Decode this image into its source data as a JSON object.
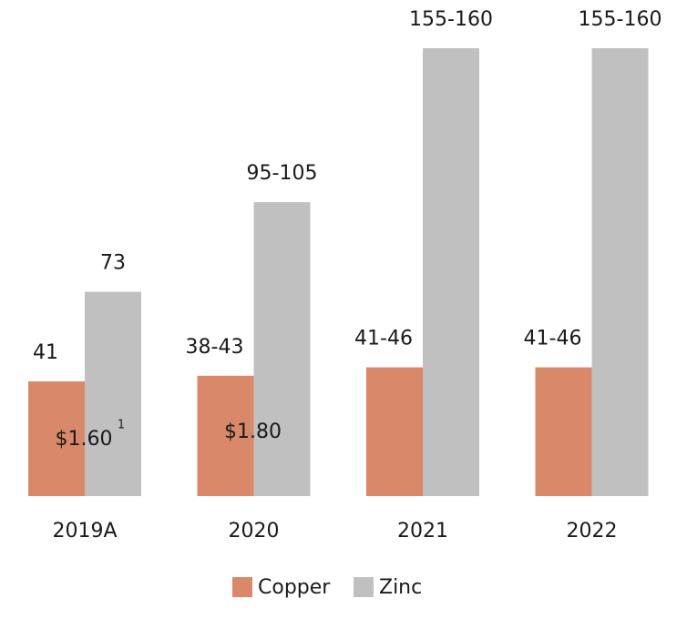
{
  "chart_data": {
    "type": "bar",
    "categories": [
      "2019A",
      "2020",
      "2021",
      "2022"
    ],
    "series": [
      {
        "name": "Copper",
        "color": "#d9896a",
        "values": [
          41,
          43,
          46,
          46
        ],
        "value_labels": [
          "41",
          "38-43",
          "41-46",
          "41-46"
        ]
      },
      {
        "name": "Zinc",
        "color": "#c0c0c0",
        "values": [
          73,
          105,
          160,
          160
        ],
        "value_labels": [
          "73",
          "95-105",
          "155-160",
          "155-160"
        ]
      }
    ],
    "annotations": [
      {
        "category": "2019A",
        "text": "$1.60",
        "footnote": "1"
      },
      {
        "category": "2020",
        "text": "$1.80"
      }
    ],
    "legend": "bottom"
  }
}
